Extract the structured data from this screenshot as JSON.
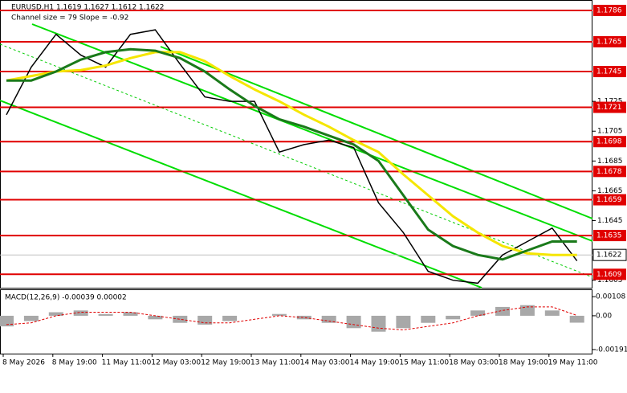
{
  "chart_data": [
    {
      "type": "line",
      "title": "EURUSD,H1  1.1619 1.1627 1.1612 1.1622",
      "subtitle": "Channel size = 79 Slope = -0.92",
      "categories": [
        "8 May 2026",
        null,
        "8 May 19:00",
        null,
        "11 May 11:00",
        null,
        "12 May 03:00",
        null,
        "12 May 19:00",
        null,
        "13 May 11:00",
        null,
        "14 May 03:00",
        null,
        "14 May 19:00",
        null,
        "15 May 11:00",
        null,
        "18 May 03:00",
        null,
        "18 May 19:00",
        null,
        "19 May 11:00",
        null
      ],
      "series": [
        {
          "color": "#000000",
          "values": [
            1.1716,
            1.1748,
            1.177,
            1.1756,
            1.1748,
            1.177,
            1.1773,
            1.175,
            1.1728,
            1.1725,
            1.1725,
            1.1691,
            1.1696,
            1.1699,
            1.1694,
            1.1657,
            1.1637,
            1.1611,
            1.1605,
            1.1603,
            1.1622,
            1.1631,
            1.164,
            1.1618
          ]
        },
        {
          "color": "#f5e600",
          "values": [
            1.1739,
            1.1742,
            1.1745,
            1.1746,
            1.1749,
            1.1754,
            1.1758,
            1.1758,
            1.1752,
            1.1742,
            1.1733,
            1.1725,
            1.1716,
            1.1708,
            1.1699,
            1.1691,
            1.1676,
            1.1662,
            1.1648,
            1.1637,
            1.1628,
            1.1623,
            1.1622,
            1.1622
          ]
        },
        {
          "color": "#1a7a1a",
          "values": [
            1.1739,
            1.1739,
            1.1745,
            1.1753,
            1.1758,
            1.176,
            1.1759,
            1.1754,
            1.1745,
            1.1733,
            1.1722,
            1.1713,
            1.1708,
            1.1702,
            1.1696,
            1.1685,
            1.1662,
            1.1639,
            1.1628,
            1.1622,
            1.1619,
            1.1625,
            1.1631,
            1.1631
          ]
        }
      ],
      "levels": {
        "color": "#e00000",
        "values": [
          1.1786,
          1.1765,
          1.1745,
          1.1721,
          1.1698,
          1.1678,
          1.1659,
          1.1635,
          1.1609
        ]
      },
      "current_price": 1.1622,
      "ylim": [
        1.16,
        1.1793
      ],
      "yticks": [
        1.1725,
        1.1705,
        1.1685,
        1.1665,
        1.1645,
        1.1605
      ]
    },
    {
      "type": "bar",
      "title": "MACD(12,26,9) -0.00039 0.00002",
      "series": [
        {
          "color": "#a8a8a8",
          "values": [
            -0.0006,
            -0.0003,
            0.0002,
            0.0003,
            0.0001,
            0.0002,
            -0.0002,
            -0.0004,
            -0.0005,
            -0.0003,
            0.0,
            0.0001,
            -0.0002,
            -0.0004,
            -0.0007,
            -0.0009,
            -0.0007,
            -0.0004,
            -0.0002,
            0.0003,
            0.0005,
            0.0006,
            0.0003,
            -0.00039
          ]
        },
        {
          "color": "#e00000",
          "values": [
            -0.0005,
            -0.0004,
            0.0,
            0.0002,
            0.0002,
            0.0002,
            0.0,
            -0.0002,
            -0.0004,
            -0.0004,
            -0.0002,
            0.0,
            -0.0001,
            -0.0003,
            -0.0005,
            -0.0007,
            -0.0008,
            -0.0006,
            -0.0004,
            0.0,
            0.0003,
            0.0005,
            0.0005,
            2e-05
          ]
        }
      ],
      "ylim": [
        -0.00214,
        0.00145
      ],
      "yticks": [
        0.00108,
        {
          "value": 0,
          "label": "0.00"
        },
        -0.00191
      ]
    }
  ]
}
